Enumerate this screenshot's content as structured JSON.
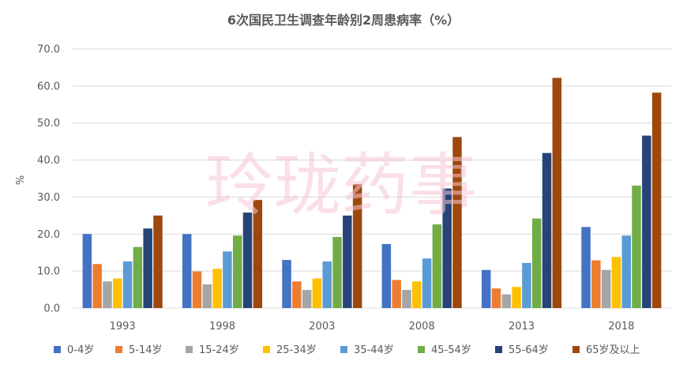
{
  "chart_data": {
    "type": "bar",
    "title": "6次国民卫生调查年龄别2周患病率（%）",
    "ylabel": "%",
    "xlabel": "",
    "ylim": [
      0,
      70
    ],
    "ytick_step": 10,
    "ytick_labels": [
      "0.0",
      "10.0",
      "20.0",
      "30.0",
      "40.0",
      "50.0",
      "60.0",
      "70.0"
    ],
    "grid": true,
    "legend_position": "bottom",
    "categories": [
      "1993",
      "1998",
      "2003",
      "2008",
      "2013",
      "2018"
    ],
    "series": [
      {
        "name": "0-4岁",
        "color": "#4472C4",
        "values": [
          20.0,
          20.0,
          13.0,
          17.3,
          10.3,
          21.9
        ]
      },
      {
        "name": "5-14岁",
        "color": "#ED7D31",
        "values": [
          11.9,
          9.9,
          7.2,
          7.6,
          5.3,
          12.9
        ]
      },
      {
        "name": "15-24岁",
        "color": "#A5A5A5",
        "values": [
          7.2,
          6.4,
          4.9,
          4.9,
          3.7,
          10.3
        ]
      },
      {
        "name": "25-34岁",
        "color": "#FFC000",
        "values": [
          8.0,
          10.6,
          8.0,
          7.2,
          5.7,
          13.8
        ]
      },
      {
        "name": "35-44岁",
        "color": "#5B9BD5",
        "values": [
          12.6,
          15.3,
          12.6,
          13.4,
          12.2,
          19.6
        ]
      },
      {
        "name": "45-54岁",
        "color": "#70AD47",
        "values": [
          16.5,
          19.6,
          19.2,
          22.6,
          24.2,
          33.1
        ]
      },
      {
        "name": "55-64岁",
        "color": "#264478",
        "values": [
          21.5,
          25.8,
          25.0,
          32.3,
          41.9,
          46.6
        ]
      },
      {
        "name": "65岁及以上",
        "color": "#9E480E",
        "values": [
          25.0,
          29.2,
          33.5,
          46.2,
          62.2,
          58.2
        ]
      }
    ]
  },
  "watermark": "玲珑药事"
}
